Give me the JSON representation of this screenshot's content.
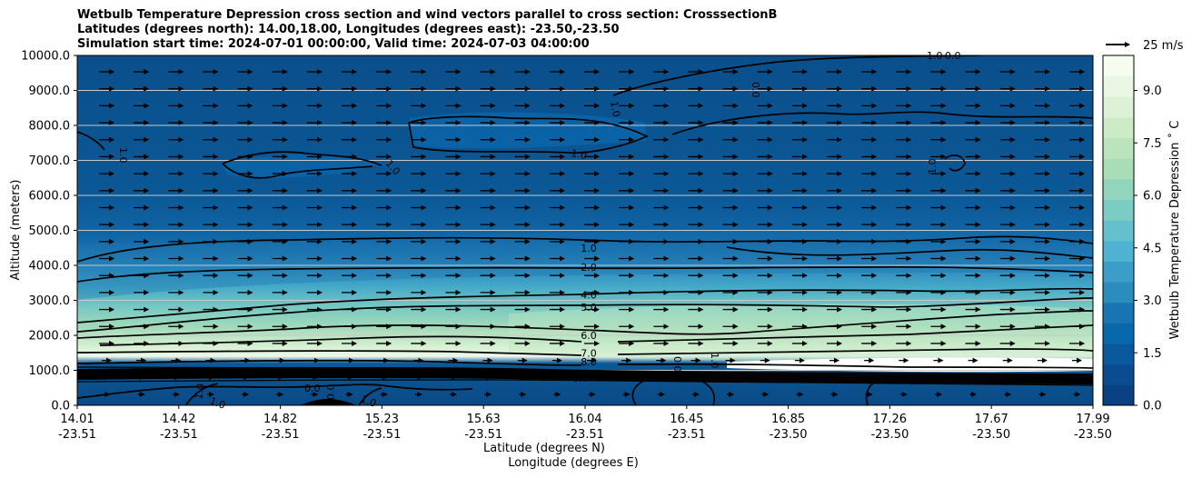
{
  "title": {
    "line1": "Wetbulb Temperature Depression cross section and wind vectors parallel to cross section: CrosssectionB",
    "line2": "Latitudes (degrees north): 14.00,18.00, Longitudes (degrees east): -23.50,-23.50",
    "line3": "Simulation start time: 2024-07-01 00:00:00, Valid time: 2024-07-03 04:00:00"
  },
  "quiver_key": "25 m/s",
  "chart_data": {
    "type": "heatmap",
    "ylabel": "Altitude (meters)",
    "xlabel_line1": "Latitude (degrees N)",
    "xlabel_line2": "Longitude (degrees E)",
    "colorbar_label": "Wetbulb Temperature Depression ˚ C",
    "colormap": "GnBu_r",
    "ylim": [
      0,
      10000
    ],
    "yticks": [
      0,
      1000,
      2000,
      3000,
      4000,
      5000,
      6000,
      7000,
      8000,
      9000,
      10000
    ],
    "ytick_labels": [
      "0.0",
      "1000.0",
      "2000.0",
      "3000.0",
      "4000.0",
      "5000.0",
      "6000.0",
      "7000.0",
      "8000.0",
      "9000.0",
      "10000.0"
    ],
    "xticks": [
      {
        "lat": "14.01",
        "lon": "-23.51"
      },
      {
        "lat": "14.42",
        "lon": "-23.51"
      },
      {
        "lat": "14.82",
        "lon": "-23.51"
      },
      {
        "lat": "15.23",
        "lon": "-23.51"
      },
      {
        "lat": "15.63",
        "lon": "-23.51"
      },
      {
        "lat": "16.04",
        "lon": "-23.51"
      },
      {
        "lat": "16.45",
        "lon": "-23.51"
      },
      {
        "lat": "16.85",
        "lon": "-23.50"
      },
      {
        "lat": "17.26",
        "lon": "-23.50"
      },
      {
        "lat": "17.67",
        "lon": "-23.50"
      },
      {
        "lat": "17.99",
        "lon": "-23.50"
      }
    ],
    "colorbar_ticks": [
      "0.0",
      "1.5",
      "3.0",
      "4.5",
      "6.0",
      "7.5",
      "9.0"
    ],
    "colorbar_range": [
      0,
      10
    ],
    "grid": "horizontal",
    "wind": "vectors pointing along the section (rightward)",
    "contour_levels": [
      {
        "level": 1.0,
        "altitude_m": 4500
      },
      {
        "level": 2.0,
        "altitude_m": 3950
      },
      {
        "level": 4.0,
        "altitude_m": 3150
      },
      {
        "level": 5.0,
        "altitude_m": 2800
      },
      {
        "level": 6.0,
        "altitude_m": 2000
      },
      {
        "level": 7.0,
        "altitude_m": 1500
      },
      {
        "level": 8.0,
        "altitude_m": 1250
      }
    ],
    "inline_labels": [
      "1.0",
      "2.0",
      "4.0",
      "5.0",
      "6.0",
      "7.0",
      "8.0",
      "1.0",
      "1.0",
      "1.0",
      "0.0",
      "1.0",
      "0.0",
      "0.0",
      "0.0"
    ],
    "inline_label_values": [
      "1.0",
      "1.0",
      "1.0",
      "1.0",
      "1.0",
      "0.0",
      "0.0",
      "1.0",
      "1.0",
      "0.0",
      "0.0",
      "1.0",
      "0.0",
      "1.0",
      "0.0",
      "1.0"
    ]
  }
}
